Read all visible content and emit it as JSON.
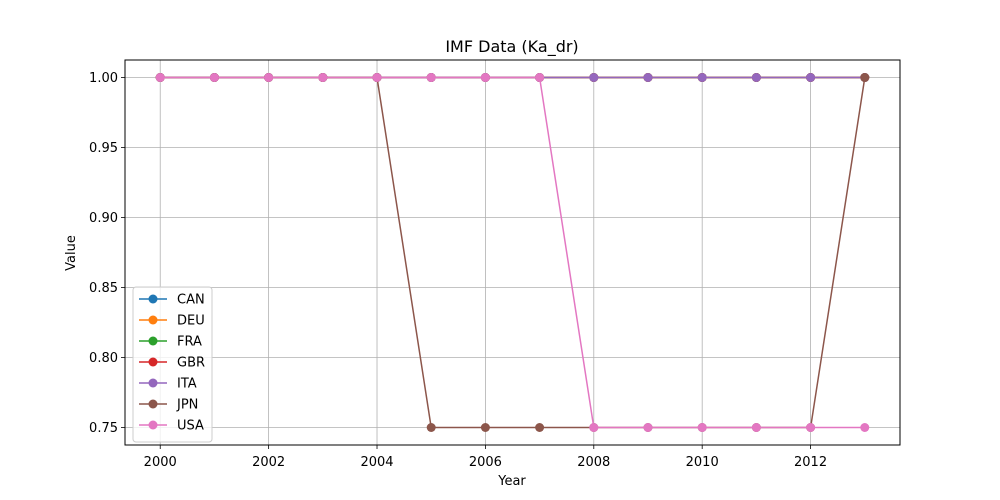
{
  "chart_data": {
    "type": "line",
    "title": "IMF Data (Ka_dr)",
    "xlabel": "Year",
    "ylabel": "Value",
    "x": [
      2000,
      2001,
      2002,
      2003,
      2004,
      2005,
      2006,
      2007,
      2008,
      2009,
      2010,
      2011,
      2012,
      2013
    ],
    "xlim": [
      1999.35,
      2013.65
    ],
    "ylim": [
      0.7375,
      1.0125
    ],
    "x_ticks": [
      2000,
      2002,
      2004,
      2006,
      2008,
      2010,
      2012
    ],
    "y_ticks": [
      0.75,
      0.8,
      0.85,
      0.9,
      0.95,
      1.0
    ],
    "y_tick_labels": [
      "0.75",
      "0.80",
      "0.85",
      "0.90",
      "0.95",
      "1.00"
    ],
    "grid": true,
    "legend_position": "lower-left",
    "series": [
      {
        "name": "CAN",
        "color": "#1f77b4",
        "values": [
          1,
          1,
          1,
          1,
          1,
          1,
          1,
          1,
          1,
          1,
          1,
          1,
          1,
          1
        ]
      },
      {
        "name": "DEU",
        "color": "#ff7f0e",
        "values": [
          1,
          1,
          1,
          1,
          1,
          1,
          1,
          1,
          1,
          1,
          1,
          1,
          1,
          1
        ]
      },
      {
        "name": "FRA",
        "color": "#2ca02c",
        "values": [
          1,
          1,
          1,
          1,
          1,
          1,
          1,
          1,
          1,
          1,
          1,
          1,
          1,
          1
        ]
      },
      {
        "name": "GBR",
        "color": "#d62728",
        "values": [
          1,
          1,
          1,
          1,
          1,
          1,
          1,
          1,
          1,
          1,
          1,
          1,
          1,
          1
        ]
      },
      {
        "name": "ITA",
        "color": "#9467bd",
        "values": [
          1,
          1,
          1,
          1,
          1,
          1,
          1,
          1,
          1,
          1,
          1,
          1,
          1,
          1
        ]
      },
      {
        "name": "JPN",
        "color": "#8c564b",
        "values": [
          1,
          1,
          1,
          1,
          1,
          0.75,
          0.75,
          0.75,
          0.75,
          0.75,
          0.75,
          0.75,
          0.75,
          1
        ]
      },
      {
        "name": "USA",
        "color": "#e377c2",
        "values": [
          1,
          1,
          1,
          1,
          1,
          1,
          1,
          1,
          0.75,
          0.75,
          0.75,
          0.75,
          0.75,
          0.75
        ]
      }
    ]
  }
}
